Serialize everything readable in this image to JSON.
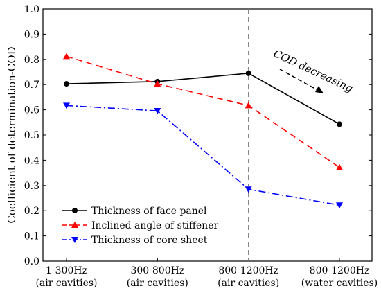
{
  "chart_data": {
    "type": "line",
    "ylabel": "Coefficient of determination-COD",
    "xlabel": "",
    "ylim": [
      0,
      1.0
    ],
    "yticks": [
      "0.0",
      "0.1",
      "0.2",
      "0.3",
      "0.4",
      "0.5",
      "0.6",
      "0.7",
      "0.8",
      "0.9",
      "1.0"
    ],
    "categories": [
      [
        "1-300Hz",
        "(air cavities)"
      ],
      [
        "300-800Hz",
        "(air cavities)"
      ],
      [
        "800-1200Hz",
        "(air cavities)"
      ],
      [
        "800-1200Hz",
        "(water cavities)"
      ]
    ],
    "grid": false,
    "legend_position": "bottom-left",
    "series": [
      {
        "name": "Thickness of face panel",
        "values": [
          0.703,
          0.712,
          0.745,
          0.543
        ],
        "color": "#000000",
        "dash": "solid",
        "marker": "circle"
      },
      {
        "name": "Inclined angle of stiffener",
        "values": [
          0.812,
          0.703,
          0.617,
          0.372
        ],
        "color": "#ff0000",
        "dash": "dash",
        "marker": "triangle-up"
      },
      {
        "name": "Thickness of core sheet",
        "values": [
          0.617,
          0.596,
          0.285,
          0.222
        ],
        "color": "#0000ff",
        "dash": "dashdot",
        "marker": "triangle-down"
      }
    ],
    "reference_line": {
      "category_index": 2,
      "color": "#808080",
      "dash": "dash"
    },
    "annotation": {
      "text": "COD decreasing",
      "arrow": "dashed",
      "direction": "down-right"
    }
  }
}
